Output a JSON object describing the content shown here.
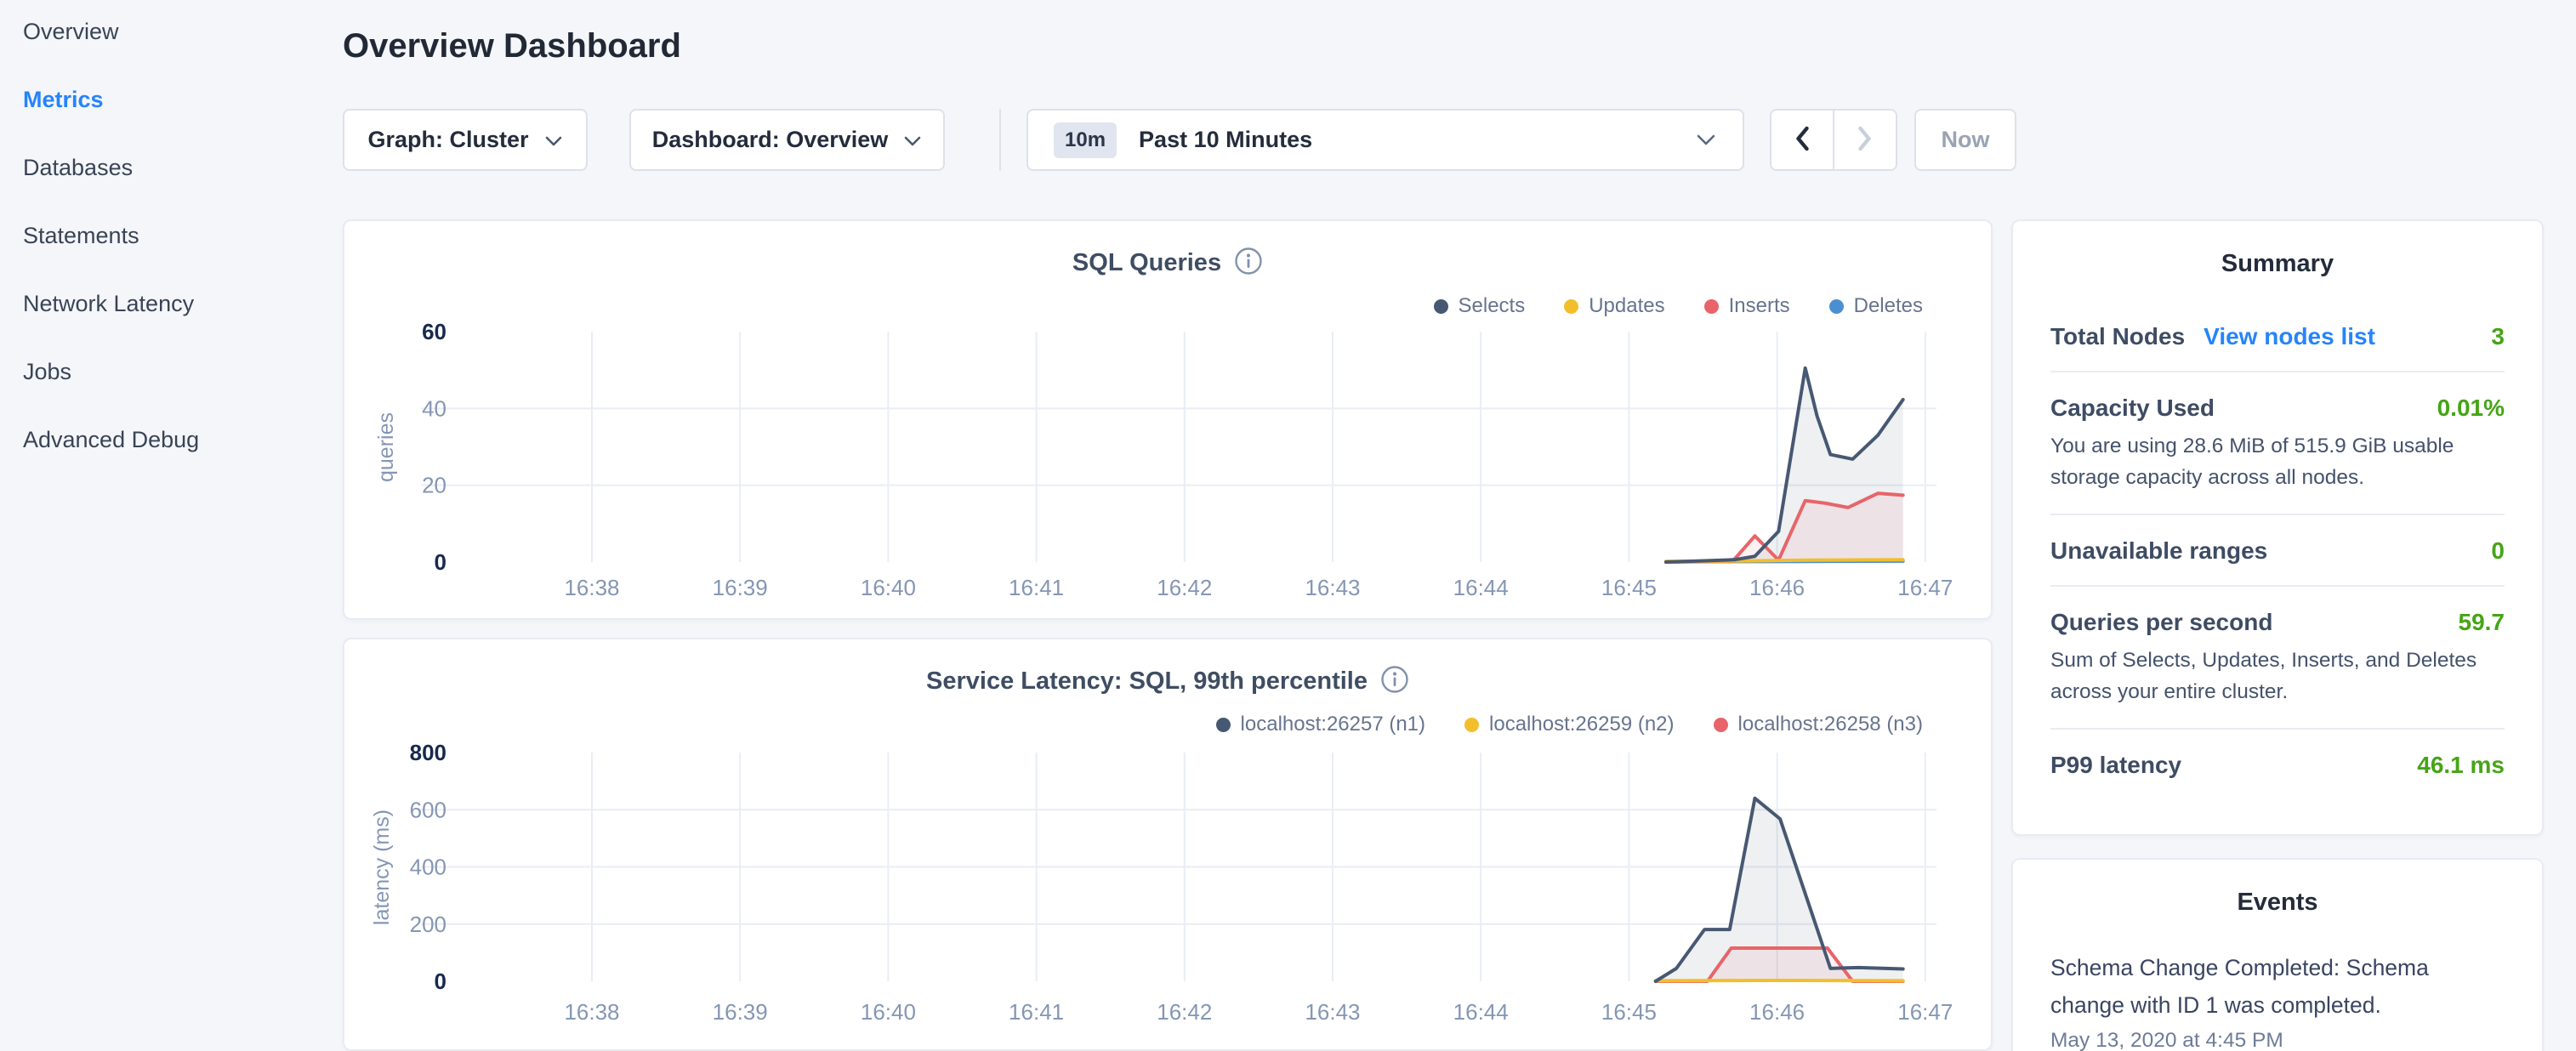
{
  "sidebar": {
    "items": [
      {
        "label": "Overview",
        "active": false
      },
      {
        "label": "Metrics",
        "active": true
      },
      {
        "label": "Databases",
        "active": false
      },
      {
        "label": "Statements",
        "active": false
      },
      {
        "label": "Network Latency",
        "active": false
      },
      {
        "label": "Jobs",
        "active": false
      },
      {
        "label": "Advanced Debug",
        "active": false
      }
    ]
  },
  "header": {
    "title": "Overview Dashboard"
  },
  "toolbar": {
    "graph_dropdown": "Graph: Cluster",
    "dashboard_dropdown": "Dashboard: Overview",
    "time_badge": "10m",
    "time_range": "Past 10 Minutes",
    "now_label": "Now"
  },
  "summary": {
    "title": "Summary",
    "rows": [
      {
        "label": "Total Nodes",
        "link": "View nodes list",
        "value": "3"
      },
      {
        "label": "Capacity Used",
        "value": "0.01%",
        "subtext": "You are using 28.6 MiB of 515.9 GiB usable storage capacity across all nodes."
      },
      {
        "label": "Unavailable ranges",
        "value": "0"
      },
      {
        "label": "Queries per second",
        "value": "59.7",
        "subtext": "Sum of Selects, Updates, Inserts, and Deletes across your entire cluster."
      },
      {
        "label": "P99 latency",
        "value": "46.1 ms"
      }
    ]
  },
  "events": {
    "title": "Events",
    "items": [
      {
        "message": "Schema Change Completed: Schema change with ID 1 was completed.",
        "timestamp": "May 13, 2020 at 4:45 PM"
      }
    ]
  },
  "colors": {
    "accent_blue": "#2684fb",
    "value_green": "#46a417",
    "grid": "#e9edf4",
    "tick_muted": "#8596b4",
    "tick_dark": "#17294d"
  },
  "chart_data": [
    {
      "type": "line",
      "title": "SQL Queries",
      "ylabel": "queries",
      "xlabel": "",
      "x_tick_labels": [
        "16:38",
        "16:39",
        "16:40",
        "16:41",
        "16:42",
        "16:43",
        "16:44",
        "16:45",
        "16:46",
        "16:47"
      ],
      "y_ticks": [
        0,
        20,
        40,
        60
      ],
      "ylim": [
        0,
        60
      ],
      "grid": true,
      "legend_position": "top-right",
      "series": [
        {
          "name": "Selects",
          "color": "#475872",
          "points": [
            [
              7.25,
              0
            ],
            [
              7.55,
              0.4
            ],
            [
              7.71,
              0.6
            ],
            [
              7.85,
              1.5
            ],
            [
              8.01,
              8
            ],
            [
              8.19,
              50.5
            ],
            [
              8.27,
              38
            ],
            [
              8.36,
              28
            ],
            [
              8.51,
              26.8
            ],
            [
              8.68,
              33
            ],
            [
              8.85,
              42.3
            ]
          ]
        },
        {
          "name": "Updates",
          "color": "#f2be2c",
          "points": [
            [
              7.25,
              0.2
            ],
            [
              7.8,
              0.3
            ],
            [
              8.2,
              0.5
            ],
            [
              8.85,
              0.6
            ]
          ]
        },
        {
          "name": "Inserts",
          "color": "#e8646a",
          "points": [
            [
              7.25,
              0
            ],
            [
              7.7,
              0.2
            ],
            [
              7.85,
              6.8
            ],
            [
              8.01,
              0.5
            ],
            [
              8.19,
              16
            ],
            [
              8.33,
              15.3
            ],
            [
              8.48,
              14.2
            ],
            [
              8.68,
              17.9
            ],
            [
              8.85,
              17.4
            ]
          ]
        },
        {
          "name": "Deletes",
          "color": "#4b8fd1",
          "points": [
            [
              7.25,
              0.1
            ],
            [
              8.0,
              0.15
            ],
            [
              8.85,
              0.25
            ]
          ]
        }
      ]
    },
    {
      "type": "line",
      "title": "Service Latency: SQL, 99th percentile",
      "ylabel": "latency (ms)",
      "xlabel": "",
      "x_tick_labels": [
        "16:38",
        "16:39",
        "16:40",
        "16:41",
        "16:42",
        "16:43",
        "16:44",
        "16:45",
        "16:46",
        "16:47"
      ],
      "y_ticks": [
        0,
        200,
        400,
        600,
        800
      ],
      "ylim": [
        0,
        800
      ],
      "grid": true,
      "legend_position": "top-right",
      "series": [
        {
          "name": "localhost:26257 (n1)",
          "color": "#475872",
          "points": [
            [
              7.18,
              0
            ],
            [
              7.32,
              45
            ],
            [
              7.51,
              181
            ],
            [
              7.68,
              181
            ],
            [
              7.85,
              640
            ],
            [
              8.02,
              568
            ],
            [
              8.36,
              45
            ],
            [
              8.55,
              48
            ],
            [
              8.85,
              43
            ]
          ]
        },
        {
          "name": "localhost:26259 (n2)",
          "color": "#f2be2c",
          "points": [
            [
              7.18,
              2
            ],
            [
              8.0,
              3
            ],
            [
              8.85,
              2
            ]
          ]
        },
        {
          "name": "localhost:26258 (n3)",
          "color": "#e8646a",
          "points": [
            [
              7.18,
              0
            ],
            [
              7.53,
              0
            ],
            [
              7.69,
              116
            ],
            [
              8.34,
              116
            ],
            [
              8.51,
              0
            ],
            [
              8.85,
              0
            ]
          ]
        }
      ]
    }
  ]
}
